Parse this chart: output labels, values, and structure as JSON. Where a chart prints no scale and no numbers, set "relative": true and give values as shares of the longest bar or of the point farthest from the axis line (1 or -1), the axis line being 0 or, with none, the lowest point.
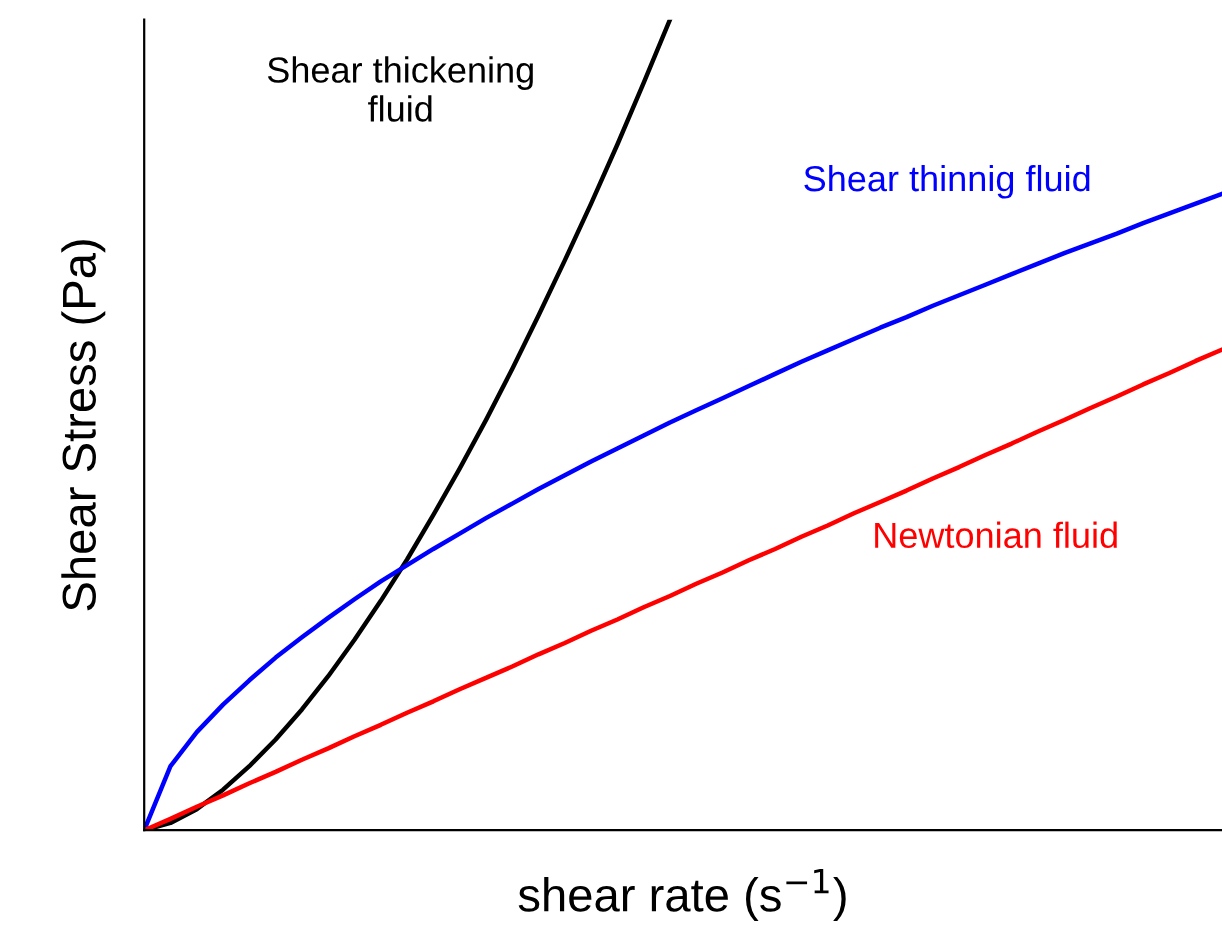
{
  "chart_data": {
    "type": "line",
    "relative": true,
    "xlabel": "shear rate (s$^{−1}$)",
    "ylabel": "Shear Stress (Pa)",
    "tick_labels": false,
    "grid": false,
    "legend": false,
    "marker": "none",
    "line_style": "solid",
    "categories": [
      null,
      null,
      null,
      null,
      null,
      null,
      null,
      null,
      null,
      null,
      null,
      null,
      null,
      null,
      null,
      null,
      null,
      null,
      null,
      null,
      null,
      null,
      null,
      null,
      null,
      null,
      null,
      null,
      null,
      null,
      null,
      null,
      null,
      null,
      null,
      null,
      null,
      null,
      null,
      null,
      null,
      null
    ],
    "series": [
      {
        "name": "Shear thickening\nfluid",
        "color": "#000000",
        "values": [
          0,
          0.009,
          0.026,
          0.05,
          0.079,
          0.112,
          0.149,
          0.19,
          0.235,
          0.283,
          0.334,
          0.389,
          0.446,
          0.506,
          0.569,
          0.635,
          0.703,
          0.773,
          0.846,
          0.922,
          1.0,
          null,
          null,
          null,
          null,
          null,
          null,
          null,
          null,
          null,
          null,
          null,
          null,
          null,
          null,
          null,
          null,
          null,
          null,
          null,
          null,
          null
        ]
      },
      {
        "name": "Shear thinnig fluid",
        "color": "#0000ff",
        "values": [
          0,
          0.079,
          0.121,
          0.155,
          0.185,
          0.213,
          0.238,
          0.262,
          0.285,
          0.307,
          0.327,
          0.347,
          0.366,
          0.385,
          0.403,
          0.421,
          0.438,
          0.455,
          0.471,
          0.487,
          0.503,
          0.518,
          0.533,
          0.548,
          0.563,
          0.578,
          0.592,
          0.606,
          0.62,
          0.633,
          0.647,
          0.66,
          0.673,
          0.686,
          0.699,
          0.712,
          0.724,
          0.736,
          0.749,
          0.761,
          0.773,
          0.785
        ]
      },
      {
        "name": "Newtonian fluid",
        "color": "#ff0000",
        "values": [
          0,
          0.014,
          0.029,
          0.043,
          0.058,
          0.072,
          0.087,
          0.101,
          0.116,
          0.13,
          0.145,
          0.159,
          0.174,
          0.188,
          0.202,
          0.217,
          0.231,
          0.246,
          0.26,
          0.275,
          0.289,
          0.304,
          0.318,
          0.333,
          0.347,
          0.362,
          0.376,
          0.391,
          0.405,
          0.419,
          0.434,
          0.448,
          0.463,
          0.477,
          0.492,
          0.506,
          0.521,
          0.535,
          0.55,
          0.564,
          0.579,
          0.593
        ]
      }
    ]
  }
}
